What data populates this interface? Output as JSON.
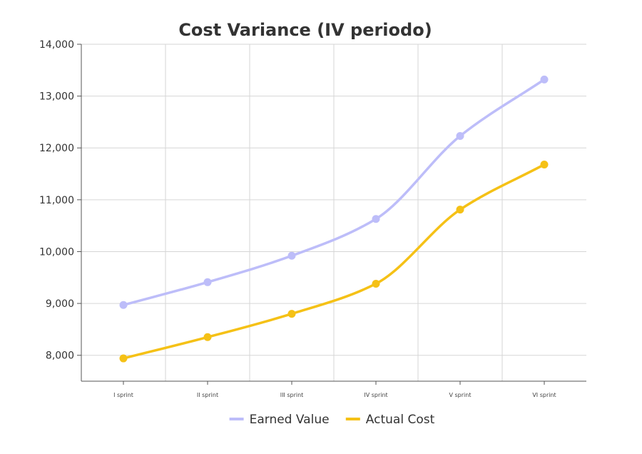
{
  "chart_data": {
    "type": "line",
    "title": "Cost Variance (IV periodo)",
    "categories": [
      "I sprint",
      "II sprint",
      "III sprint",
      "IV sprint",
      "V sprint",
      "VI sprint"
    ],
    "series": [
      {
        "name": "Earned Value",
        "values": [
          8970,
          9410,
          9920,
          10630,
          12230,
          13320
        ],
        "color": "#bdbdf9"
      },
      {
        "name": "Actual Cost",
        "values": [
          7940,
          8350,
          8800,
          9380,
          10810,
          11680
        ],
        "color": "#f5c116"
      }
    ],
    "yticks": [
      "8,000",
      "9,000",
      "10,000",
      "11,000",
      "12,000",
      "13,000",
      "14,000"
    ],
    "ylim": [
      7500,
      14000
    ],
    "grid": true,
    "legend": "bottom"
  }
}
